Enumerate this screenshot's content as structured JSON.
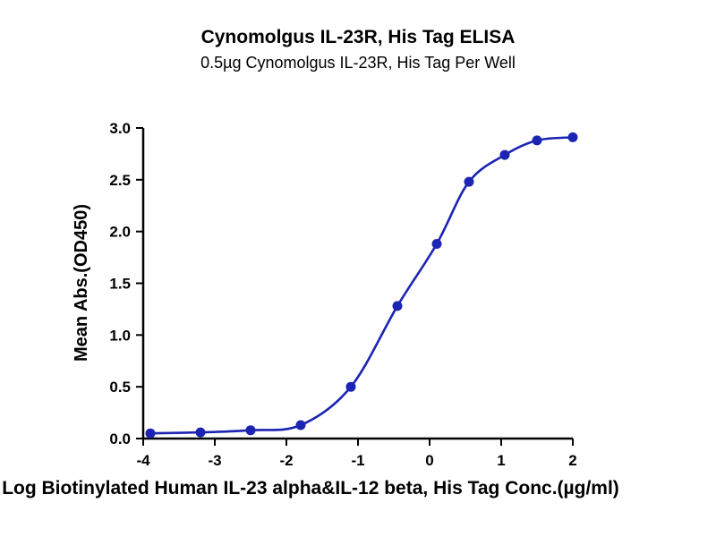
{
  "chart_data": {
    "type": "scatter",
    "title": "Cynomolgus IL-23R, His Tag ELISA",
    "subtitle": "0.5µg Cynomolgus IL-23R, His Tag Per Well",
    "xlabel": "Log Biotinylated Human IL-23 alpha&IL-12 beta, His Tag Conc.(µg/ml)",
    "ylabel": "Mean Abs.(OD450)",
    "x": [
      -3.9,
      -3.2,
      -2.5,
      -1.8,
      -1.1,
      -0.45,
      0.1,
      0.55,
      1.05,
      1.5,
      2.0
    ],
    "y": [
      0.05,
      0.06,
      0.08,
      0.13,
      0.5,
      1.28,
      1.88,
      2.48,
      2.74,
      2.88,
      2.91
    ],
    "xlim": [
      -4,
      2
    ],
    "ylim": [
      0,
      3
    ],
    "xticks": [
      -4,
      -3,
      -2,
      -1,
      0,
      1,
      2
    ],
    "xtick_labels": [
      "-4",
      "-3",
      "-2",
      "-1",
      "0",
      "1",
      "2"
    ],
    "yticks": [
      0,
      0.5,
      1,
      1.5,
      2,
      2.5,
      3
    ],
    "ytick_labels": [
      "0.0",
      "0.5",
      "1.0",
      "1.5",
      "2.0",
      "2.5",
      "3.0"
    ],
    "curve": "sigmoidal 4PL fit through points",
    "grid": false,
    "legend": "none",
    "point_color": "#1c24b2",
    "line_color": "#1c24b2",
    "axis_color": "#000000"
  }
}
